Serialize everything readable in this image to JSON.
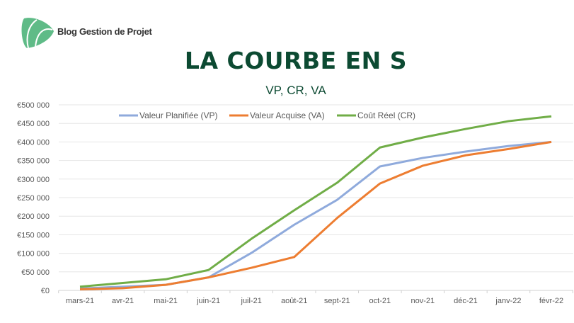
{
  "header": {
    "brand": "Blog Gestion de Projet",
    "title": "LA COURBE EN S",
    "subtitle": "VP, CR, VA"
  },
  "chart_data": {
    "type": "line",
    "title": "LA COURBE EN S",
    "subtitle": "VP, CR, VA",
    "xlabel": "",
    "ylabel": "",
    "ylim": [
      0,
      500000
    ],
    "yticks": [
      0,
      50000,
      100000,
      150000,
      200000,
      250000,
      300000,
      350000,
      400000,
      450000,
      500000
    ],
    "ytick_labels": [
      "€0",
      "€50 000",
      "€100 000",
      "€150 000",
      "€200 000",
      "€250 000",
      "€300 000",
      "€350 000",
      "€400 000",
      "€450 000",
      "€500 000"
    ],
    "categories": [
      "mars-21",
      "avr-21",
      "mai-21",
      "juin-21",
      "juil-21",
      "août-21",
      "sept-21",
      "oct-21",
      "nov-21",
      "déc-21",
      "janv-22",
      "févr-22"
    ],
    "grid": true,
    "legend_position": "top",
    "series": [
      {
        "name": "Valeur Planifiée (VP)",
        "color": "#8faadc",
        "values": [
          5000,
          10000,
          15000,
          35000,
          101000,
          177000,
          244000,
          334000,
          357000,
          374000,
          389000,
          400000
        ]
      },
      {
        "name": "Valeur Acquise (VA)",
        "color": "#ed7d31",
        "values": [
          3000,
          6000,
          15000,
          35000,
          61000,
          90000,
          195000,
          288000,
          336000,
          364000,
          381000,
          400000
        ]
      },
      {
        "name": "Coût Réel (CR)",
        "color": "#70ad47",
        "values": [
          10000,
          20000,
          30000,
          55000,
          139000,
          216000,
          290000,
          385000,
          412000,
          435000,
          456000,
          469000
        ]
      }
    ]
  }
}
